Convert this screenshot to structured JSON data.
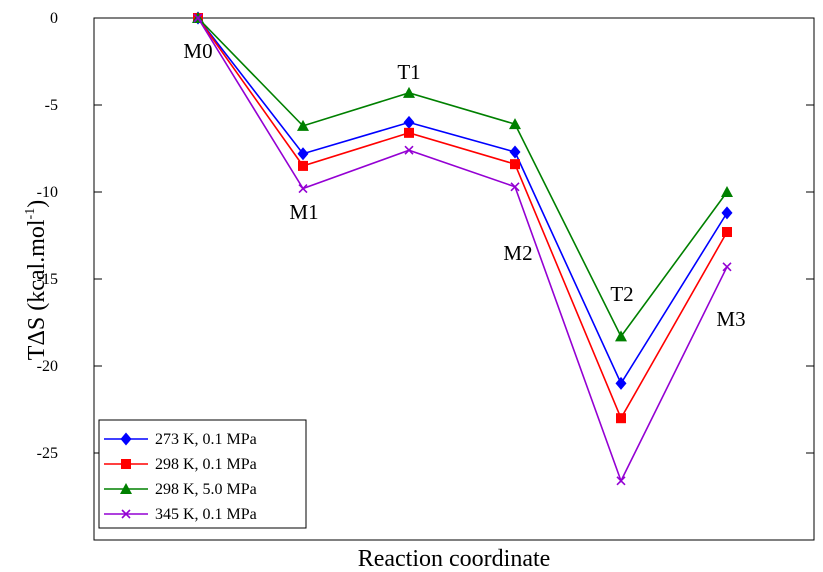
{
  "chart_data": {
    "type": "line",
    "xlabel": "Reaction coordinate",
    "ylabel_main": "TΔS (kcal.mol",
    "ylabel_sup": "-1",
    "ylabel_end": ")",
    "ylim": [
      -30,
      0
    ],
    "yticks": [
      0,
      -5,
      -10,
      -15,
      -20,
      -25
    ],
    "ytick_labels": [
      "0",
      "-5",
      "-10",
      "-15",
      "-20",
      "-25"
    ],
    "grid": false,
    "legend_position": "bottom-left",
    "categories": [
      "M0",
      "M1",
      "T1",
      "M2",
      "T2",
      "M3"
    ],
    "point_labels": [
      "M0",
      "M1",
      "T1",
      "M2",
      "T2",
      "M3"
    ],
    "series": [
      {
        "name": "273 K, 0.1 MPa",
        "color": "#0000ff",
        "marker": "diamond",
        "values": [
          0,
          -7.8,
          -6.0,
          -7.7,
          -21.0,
          -11.2
        ]
      },
      {
        "name": "298 K, 0.1 MPa",
        "color": "#ff0000",
        "marker": "square",
        "values": [
          0,
          -8.5,
          -6.6,
          -8.4,
          -23.0,
          -12.3
        ]
      },
      {
        "name": "298 K, 5.0 MPa",
        "color": "#008000",
        "marker": "triangle",
        "values": [
          0,
          -6.2,
          -4.3,
          -6.1,
          -18.3,
          -10.0
        ]
      },
      {
        "name": "345 K, 0.1 MPa",
        "color": "#9400d3",
        "marker": "x",
        "values": [
          0,
          -9.8,
          -7.6,
          -9.7,
          -26.6,
          -14.3
        ]
      }
    ]
  }
}
